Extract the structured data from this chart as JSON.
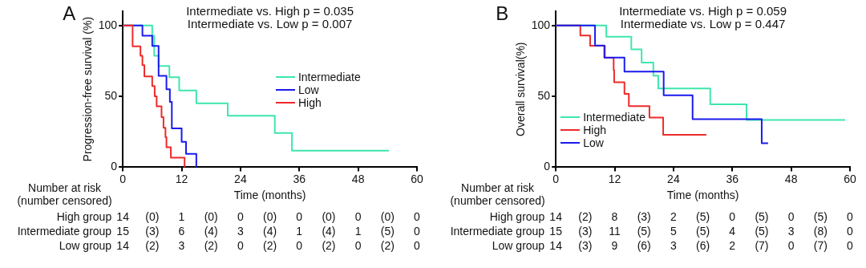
{
  "chart_data": [
    {
      "type": "step",
      "xlabel": "Time (months)",
      "ylabel": "Progression-free survival (%)",
      "xlim": [
        0,
        60
      ],
      "xticks": [
        0,
        12,
        24,
        36,
        48,
        60
      ],
      "ylim": [
        0,
        110
      ],
      "yticks": [
        0,
        50,
        100
      ],
      "grid": false,
      "legend": "right",
      "marker": "none",
      "line_style": "solid",
      "series": [
        {
          "name": "Intermediate",
          "color": "#3ee6ad",
          "x": [
            0,
            6.0,
            6.4,
            7.3,
            9.5,
            11.5,
            15.0,
            21.4,
            31.0,
            34.5,
            54.3
          ],
          "values": [
            100,
            92.7,
            78.6,
            71.4,
            63.5,
            54.1,
            45.1,
            36.3,
            24.1,
            11.7,
            11.7
          ]
        },
        {
          "name": "Low",
          "color": "#1a1aee",
          "x": [
            0,
            4.0,
            6.0,
            7.3,
            8.9,
            9.6,
            10.0,
            12.0,
            12.9,
            15.0
          ],
          "values": [
            100,
            92.7,
            85.5,
            64.5,
            55,
            46,
            27.4,
            17.9,
            9.4,
            0
          ]
        },
        {
          "name": "High",
          "color": "#ee2a2a",
          "x": [
            0,
            2.0,
            3.6,
            4.0,
            4.4,
            6.0,
            6.5,
            6.9,
            7.9,
            8.3,
            8.7,
            8.9,
            9.8,
            12.6
          ],
          "values": [
            100,
            85.2,
            78.6,
            72,
            64,
            57.3,
            50,
            42.9,
            35.3,
            27.8,
            21.2,
            14.1,
            6.8,
            0
          ]
        }
      ],
      "annotations": [
        "A",
        "Intermediate vs. High p = 0.035",
        "Intermediate vs. Low p = 0.007",
        "Number at risk (number censored)",
        "High group",
        "14",
        "(0)",
        "1",
        "(0)",
        "0",
        "(0)",
        "0",
        "(0)",
        "0",
        "(0)",
        "0",
        "Intermediate group",
        "15",
        "(3)",
        "6",
        "(4)",
        "3",
        "(4)",
        "1",
        "(4)",
        "1",
        "(5)",
        "0",
        "Low group",
        "14",
        "(2)",
        "3",
        "(2)",
        "0",
        "(2)",
        "0",
        "(2)",
        "0",
        "(2)",
        "0"
      ]
    },
    {
      "type": "step",
      "xlabel": "Time (months)",
      "ylabel": "Overall survival(%)",
      "xlim": [
        0,
        60
      ],
      "xticks": [
        0,
        12,
        24,
        36,
        48,
        60
      ],
      "ylim": [
        0,
        110
      ],
      "yticks": [
        0,
        50,
        100
      ],
      "grid": false,
      "legend": "bottom left",
      "marker": "none",
      "line_style": "solid",
      "series": [
        {
          "name": "Intermediate",
          "color": "#3ee6ad",
          "x": [
            0,
            10.3,
            15.4,
            17.5,
            19.9,
            20.9,
            31.5,
            38.9,
            59.0
          ],
          "values": [
            100,
            92.1,
            83.1,
            73.8,
            64.6,
            55.6,
            44.4,
            33.3,
            33.3
          ]
        },
        {
          "name": "High",
          "color": "#ee2a2a",
          "x": [
            0,
            5.0,
            7.0,
            10.0,
            11.8,
            11.9,
            14.0,
            14.9,
            19.1,
            21.9,
            30.7
          ],
          "values": [
            100,
            92.9,
            85.6,
            77.2,
            68.4,
            59.9,
            51.7,
            43.1,
            35.0,
            22.8,
            22.8
          ]
        },
        {
          "name": "Low",
          "color": "#1a1aee",
          "x": [
            0,
            8.0,
            9.9,
            14.0,
            22.0,
            27.9,
            42.0,
            43.3
          ],
          "values": [
            100,
            85.8,
            77.3,
            67.4,
            50.7,
            33.9,
            16.9,
            16.9
          ]
        }
      ],
      "annotations": [
        "B",
        "Intermediate vs. High p = 0.059",
        "Intermediate vs. Low p = 0.447",
        "Number at risk (number censored)",
        "High group",
        "14",
        "(2)",
        "8",
        "(3)",
        "2",
        "(5)",
        "0",
        "(5)",
        "0",
        "(5)",
        "0",
        "Intermediate group",
        "15",
        "(3)",
        "11",
        "(5)",
        "5",
        "(5)",
        "4",
        "(5)",
        "3",
        "(8)",
        "0",
        "Low group",
        "14",
        "(3)",
        "9",
        "(6)",
        "3",
        "(6)",
        "2",
        "(7)",
        "0",
        "(7)",
        "0"
      ]
    }
  ]
}
